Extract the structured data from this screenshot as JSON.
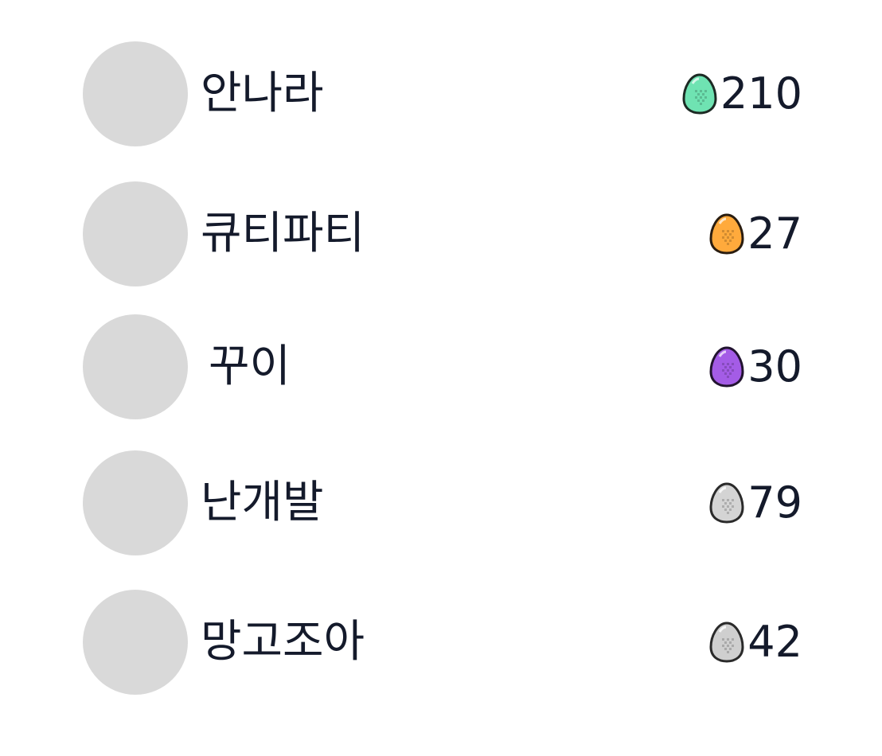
{
  "leaderboard": {
    "rows": [
      {
        "name": "안나라",
        "score": "210",
        "egg_color": "#6fe3b2",
        "egg_icon": "green-egg-icon"
      },
      {
        "name": "큐티파티",
        "score": "27",
        "egg_color": "#ffaa3c",
        "egg_icon": "orange-egg-icon"
      },
      {
        "name": "꾸이",
        "score": "30",
        "egg_color": "#a45ce6",
        "egg_icon": "purple-egg-icon"
      },
      {
        "name": "난개발",
        "score": "79",
        "egg_color": "#d4d4d4",
        "egg_icon": "gray-egg-icon"
      },
      {
        "name": "망고조아",
        "score": "42",
        "egg_color": "#cfcfcf",
        "egg_icon": "gray-egg-icon"
      }
    ]
  }
}
